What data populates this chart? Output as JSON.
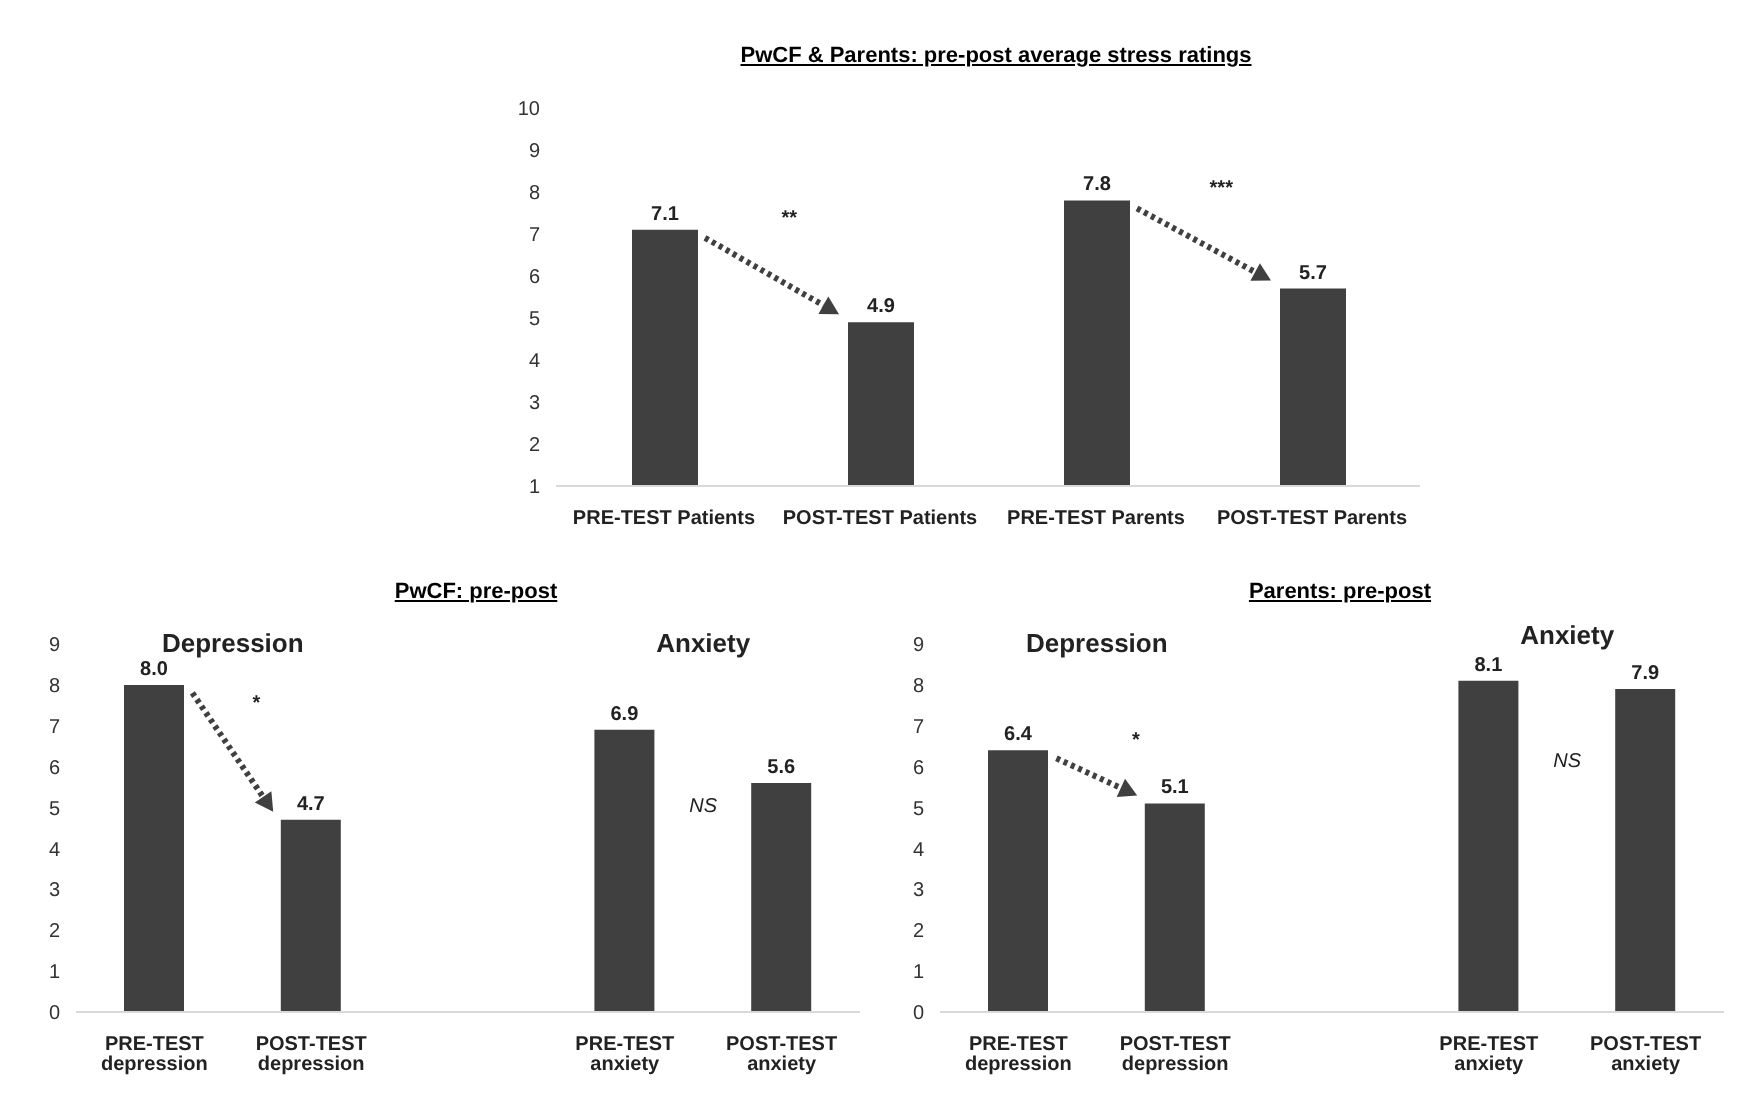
{
  "chart_data": [
    {
      "type": "bar",
      "title": "PwCF & Parents: pre-post average stress ratings",
      "categories": [
        "PRE-TEST Patients",
        "POST-TEST Patients",
        "PRE-TEST Parents",
        "POST-TEST Parents"
      ],
      "values": [
        7.1,
        4.9,
        7.8,
        5.7
      ],
      "value_labels": [
        "7.1",
        "4.9",
        "7.8",
        "5.7"
      ],
      "color": "#404040",
      "ylim": [
        1,
        10
      ],
      "yticks": [
        1,
        2,
        3,
        4,
        5,
        6,
        7,
        8,
        9,
        10
      ],
      "grid": false,
      "legend": false,
      "annotations": [
        "**",
        "***"
      ]
    },
    {
      "type": "bar",
      "title": "PwCF: pre-post",
      "categories": [
        "PRE-TEST depression",
        "POST-TEST depression",
        null,
        "PRE-TEST anxiety",
        "POST-TEST anxiety"
      ],
      "values": [
        8.0,
        4.7,
        null,
        6.9,
        5.6
      ],
      "value_labels": [
        "8.0",
        "4.7",
        null,
        "6.9",
        "5.6"
      ],
      "color": "#404040",
      "ylim": [
        0,
        9
      ],
      "yticks": [
        0,
        1,
        2,
        3,
        4,
        5,
        6,
        7,
        8,
        9
      ],
      "grid": false,
      "legend": false,
      "annotations": [
        "Depression",
        "Anxiety",
        "*",
        "NS"
      ]
    },
    {
      "type": "bar",
      "title": "Parents: pre-post",
      "categories": [
        "PRE-TEST depression",
        "POST-TEST depression",
        null,
        "PRE-TEST anxiety",
        "POST-TEST anxiety"
      ],
      "values": [
        6.4,
        5.1,
        null,
        8.1,
        7.9
      ],
      "value_labels": [
        "6.4",
        "5.1",
        null,
        "8.1",
        "7.9"
      ],
      "color": "#404040",
      "ylim": [
        0,
        9
      ],
      "yticks": [
        0,
        1,
        2,
        3,
        4,
        5,
        6,
        7,
        8,
        9
      ],
      "grid": false,
      "legend": false,
      "annotations": [
        "Depression",
        "Anxiety",
        "*",
        "NS"
      ]
    }
  ]
}
